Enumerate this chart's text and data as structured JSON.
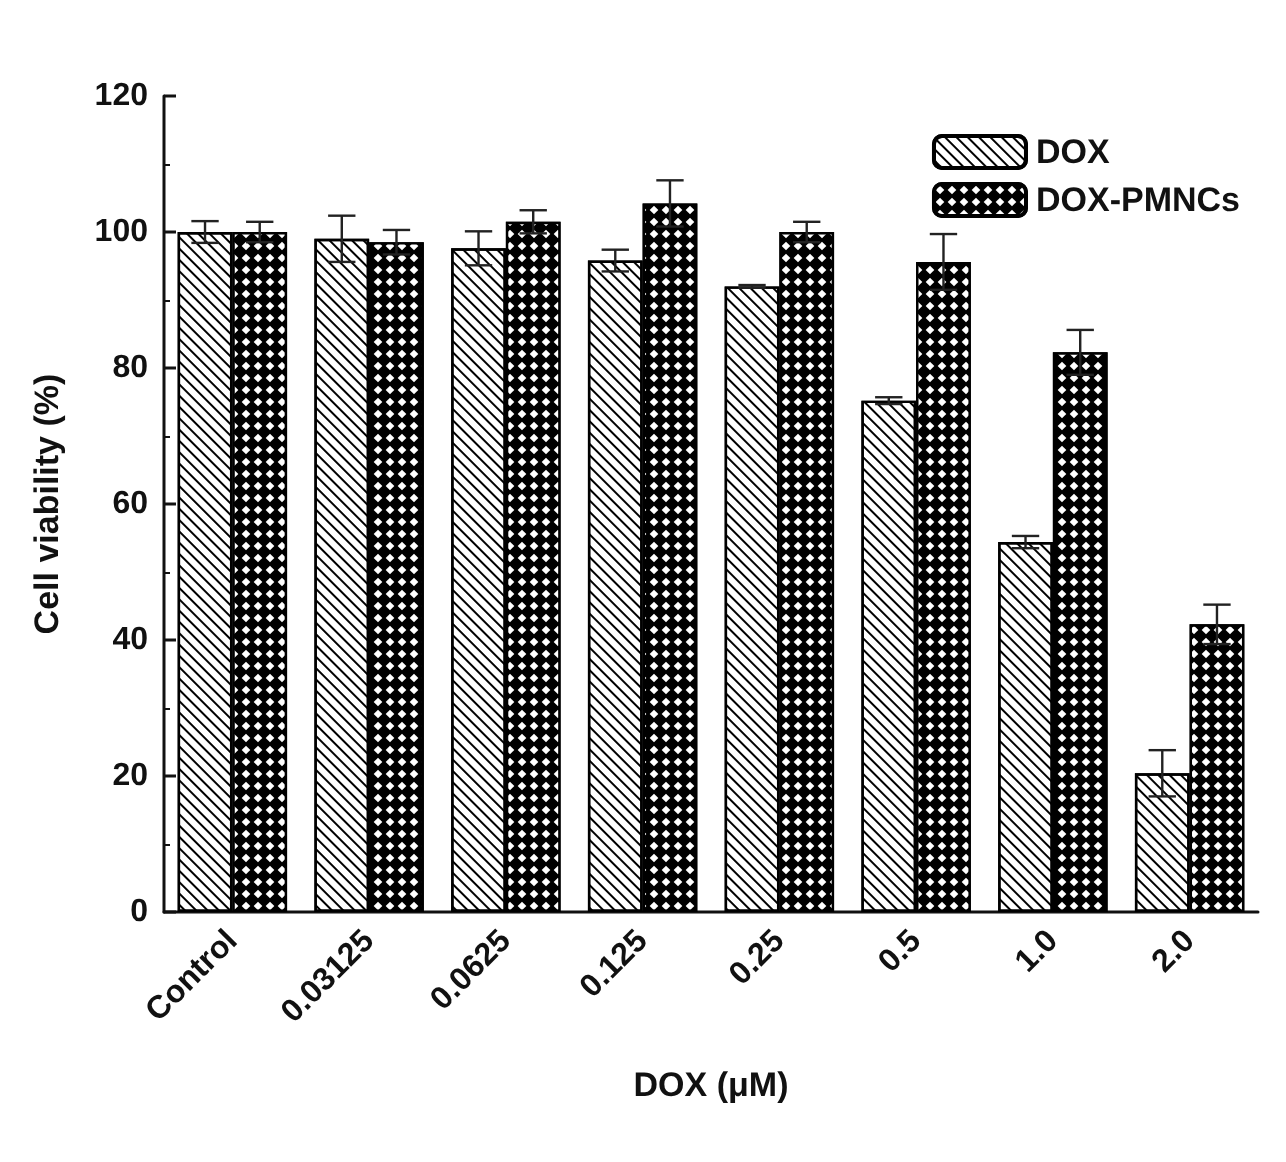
{
  "chart_data": {
    "type": "bar",
    "xlabel": "DOX (μM)",
    "ylabel": "Cell viability (%)",
    "categories": [
      "Control",
      "0.03125",
      "0.0625",
      "0.125",
      "0.25",
      "0.5",
      "1.0",
      "2.0"
    ],
    "series": [
      {
        "name": "DOX",
        "color": "#000000",
        "values": [
          100,
          99,
          97.6,
          95.8,
          92,
          75.2,
          54.4,
          20.4
        ],
        "errors": [
          1.6,
          3.4,
          2.5,
          1.6,
          0.2,
          0.5,
          0.9,
          3.4
        ]
      },
      {
        "name": "DOX-PMNCs",
        "color": "#000000",
        "values": [
          100,
          98.5,
          101.5,
          104.2,
          100,
          95.6,
          82.3,
          42.3
        ],
        "errors": [
          1.5,
          1.8,
          1.7,
          3.4,
          1.5,
          4.1,
          3.3,
          2.9
        ]
      }
    ],
    "ylim": [
      0,
      120
    ],
    "yticks": [
      0,
      20,
      40,
      60,
      80,
      100,
      120
    ],
    "grid": false,
    "legend": "top right"
  }
}
